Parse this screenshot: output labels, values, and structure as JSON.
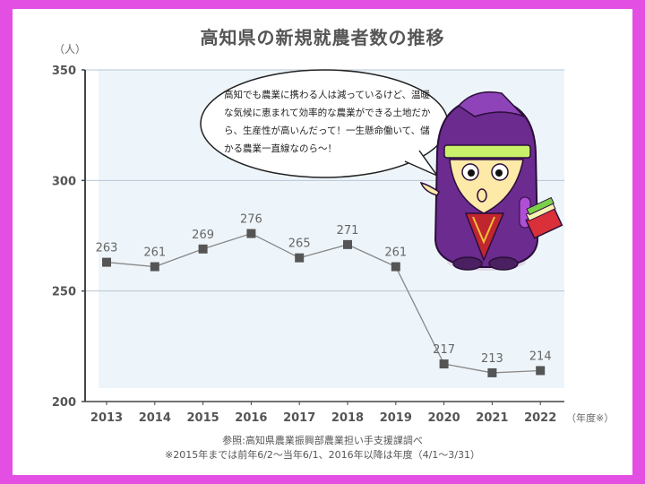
{
  "title": "高知県の新規就農者数の推移",
  "y_unit": "（人）",
  "x_unit": "（年度※）",
  "speech_bubble": "高知でも農業に携わる人は減っているけど、温暖な気候に恵まれて効率的な農業ができる土地だから、生産性が高いんだって！一生懸命働いて、儲かる農業一直線なのら〜！",
  "source_lines": [
    "参照:高知県農業振興部農業担い手支援課調べ",
    "※2015年までは前年6/2〜当年6/1、2016年以降は年度（4/1〜3/31）"
  ],
  "colors": {
    "frame": "#e34fe3",
    "plot_bg": "#eef5fa",
    "line": "#888888",
    "marker": "#555555",
    "grid": "#b8c6d2"
  },
  "chart_data": {
    "type": "line",
    "title": "高知県の新規就農者数の推移",
    "xlabel": "（年度※）",
    "ylabel": "（人）",
    "categories": [
      "2013",
      "2014",
      "2015",
      "2016",
      "2017",
      "2018",
      "2019",
      "2020",
      "2021",
      "2022"
    ],
    "values": [
      263,
      261,
      269,
      276,
      265,
      271,
      261,
      217,
      213,
      214
    ],
    "ylim": [
      200,
      350
    ],
    "yticks": [
      200,
      250,
      300,
      350
    ],
    "grid": true,
    "data_labels": true
  }
}
